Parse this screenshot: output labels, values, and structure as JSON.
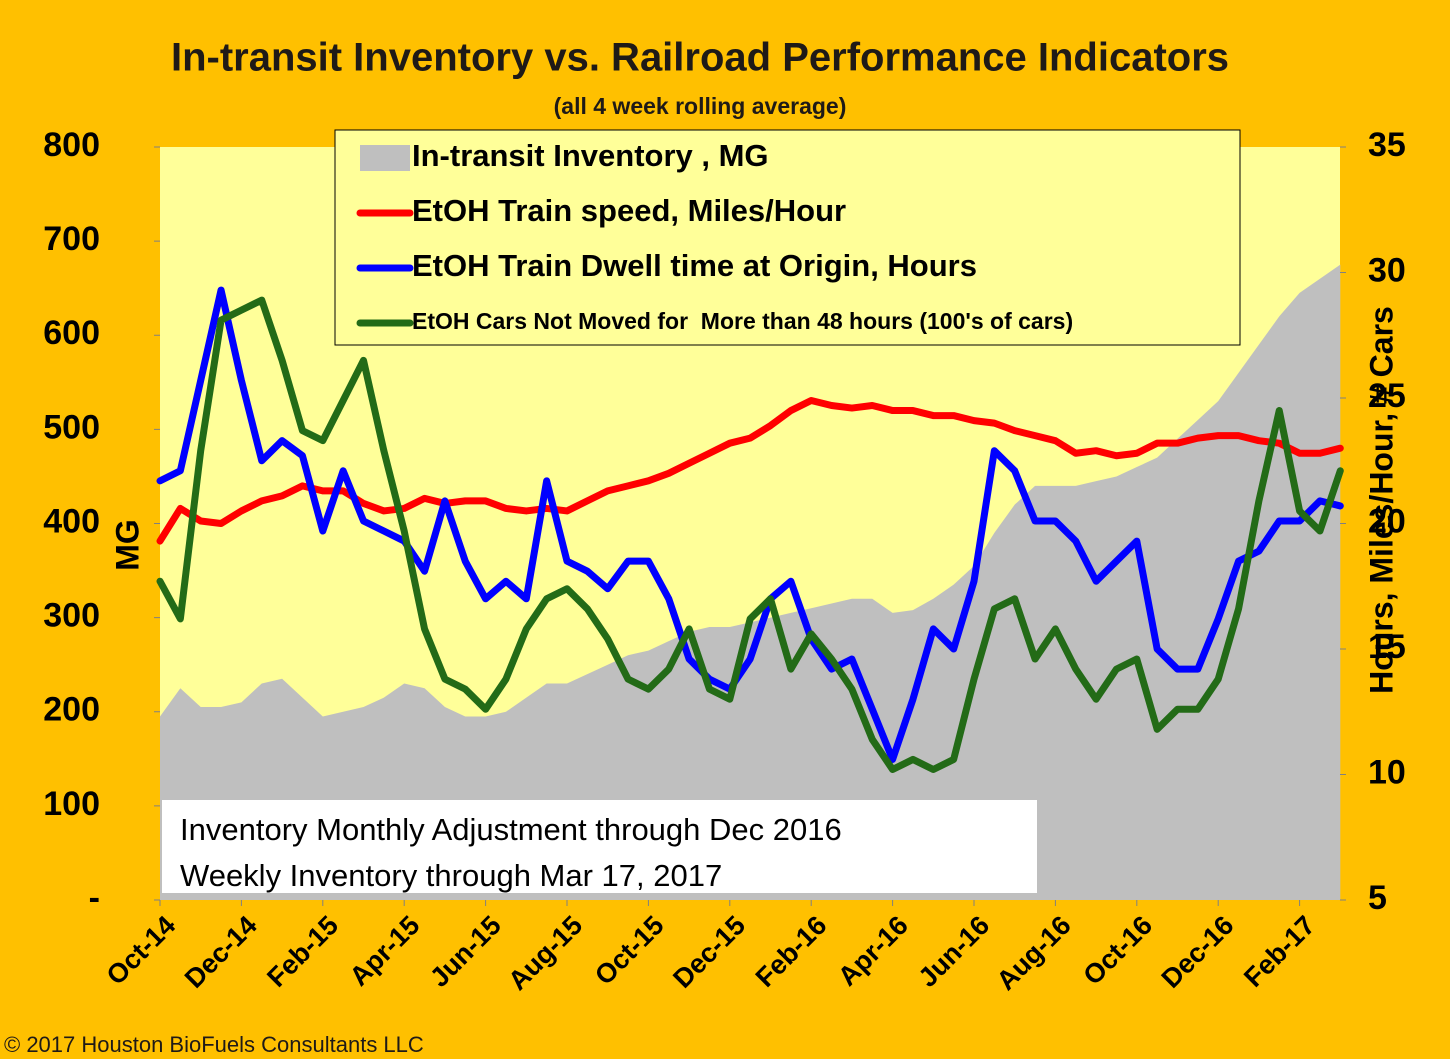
{
  "chart_data": {
    "type": "line",
    "title": "In-transit Inventory vs. Railroad Performance Indicators",
    "subtitle": "(all 4 week rolling average)",
    "ylabel": "MG",
    "y2label": "Hours, Miles/Hour, # Cars",
    "annotations": [
      "Inventory Monthly Adjustment through Dec 2016",
      "Weekly Inventory through Mar 17, 2017"
    ],
    "copyright": "© 2017 Houston BioFuels Consultants LLC",
    "background": "#FFC000",
    "plot_background": "#FFFF99",
    "categories": [
      "Oct-14",
      null,
      null,
      null,
      "Dec-14",
      null,
      null,
      null,
      "Feb-15",
      null,
      null,
      null,
      "Apr-15",
      null,
      null,
      null,
      "Jun-15",
      null,
      null,
      null,
      "Aug-15",
      null,
      null,
      null,
      "Oct-15",
      null,
      null,
      null,
      "Dec-15",
      null,
      null,
      null,
      "Feb-16",
      null,
      null,
      null,
      "Apr-16",
      null,
      null,
      null,
      "Jun-16",
      null,
      null,
      null,
      "Aug-16",
      null,
      null,
      null,
      "Oct-16",
      null,
      null,
      null,
      "Dec-16",
      null,
      null,
      null,
      "Feb-17",
      null,
      null
    ],
    "ylim": [
      0,
      800
    ],
    "yticks": [
      {
        "value": 0,
        "label": "-"
      },
      100,
      200,
      300,
      400,
      500,
      600,
      700,
      800
    ],
    "y2lim": [
      5,
      35
    ],
    "y2ticks": [
      5,
      10,
      15,
      20,
      25,
      30,
      35
    ],
    "series": [
      {
        "name": "In-transit Inventory , MG",
        "type": "area",
        "color": "#BFBFBF",
        "values": [
          195,
          225,
          205,
          205,
          210,
          230,
          235,
          215,
          195,
          200,
          205,
          215,
          230,
          225,
          205,
          195,
          195,
          200,
          215,
          230,
          230,
          240,
          250,
          260,
          265,
          275,
          285,
          290,
          290,
          295,
          300,
          305,
          310,
          315,
          320,
          320,
          305,
          308,
          320,
          335,
          355,
          390,
          420,
          440,
          440,
          440,
          445,
          450,
          460,
          470,
          490,
          510,
          530,
          560,
          590,
          620,
          645,
          660,
          675
        ]
      },
      {
        "name": "EtOH Train speed, Miles/Hour",
        "type": "line",
        "axis": "y2",
        "color": "#FF0000",
        "values": [
          19.3,
          20.6,
          20.1,
          20.0,
          20.5,
          20.9,
          21.1,
          21.5,
          21.3,
          21.3,
          20.8,
          20.5,
          20.6,
          21.0,
          20.8,
          20.9,
          20.9,
          20.6,
          20.5,
          20.6,
          20.5,
          20.9,
          21.3,
          21.5,
          21.7,
          22.0,
          22.4,
          22.8,
          23.2,
          23.4,
          23.9,
          24.5,
          24.9,
          24.7,
          24.6,
          24.7,
          24.5,
          24.5,
          24.3,
          24.3,
          24.1,
          24.0,
          23.7,
          23.5,
          23.3,
          22.8,
          22.9,
          22.7,
          22.8,
          23.2,
          23.2,
          23.4,
          23.5,
          23.5,
          23.3,
          23.2,
          22.8,
          22.8,
          23.0
        ]
      },
      {
        "name": "EtOH Train Dwell time at Origin, Hours",
        "type": "line",
        "axis": "y2",
        "color": "#0000FF",
        "values": [
          21.7,
          22.1,
          25.7,
          29.3,
          25.7,
          22.5,
          23.3,
          22.7,
          19.7,
          22.1,
          20.1,
          19.7,
          19.3,
          18.1,
          20.9,
          18.5,
          17.0,
          17.7,
          17.0,
          21.7,
          18.5,
          18.1,
          17.4,
          18.5,
          18.5,
          17.0,
          14.6,
          13.8,
          13.4,
          14.6,
          17.0,
          17.7,
          15.4,
          14.2,
          14.6,
          12.6,
          10.6,
          13.0,
          15.8,
          15.0,
          17.7,
          22.9,
          22.1,
          20.1,
          20.1,
          19.3,
          17.7,
          18.5,
          19.3,
          15.0,
          14.2,
          14.2,
          16.2,
          18.5,
          18.9,
          20.1,
          20.1,
          20.9,
          20.7
        ]
      },
      {
        "name": "EtOH Cars Not Moved for  More than 48 hours (100's of cars)",
        "type": "line",
        "axis": "y2",
        "color": "#236B17",
        "values": [
          17.7,
          16.2,
          22.9,
          28.1,
          28.5,
          28.9,
          26.5,
          23.7,
          23.3,
          24.9,
          26.5,
          22.9,
          19.7,
          15.8,
          13.8,
          13.4,
          12.6,
          13.8,
          15.8,
          17.0,
          17.4,
          16.6,
          15.4,
          13.8,
          13.4,
          14.2,
          15.8,
          13.4,
          13.0,
          16.2,
          17.0,
          14.2,
          15.6,
          14.6,
          13.4,
          11.4,
          10.2,
          10.6,
          10.2,
          10.6,
          13.8,
          16.6,
          17.0,
          14.6,
          15.8,
          14.2,
          13.0,
          14.2,
          14.6,
          11.8,
          12.6,
          12.6,
          13.8,
          16.6,
          20.9,
          24.5,
          20.5,
          19.7,
          22.1
        ]
      }
    ]
  }
}
